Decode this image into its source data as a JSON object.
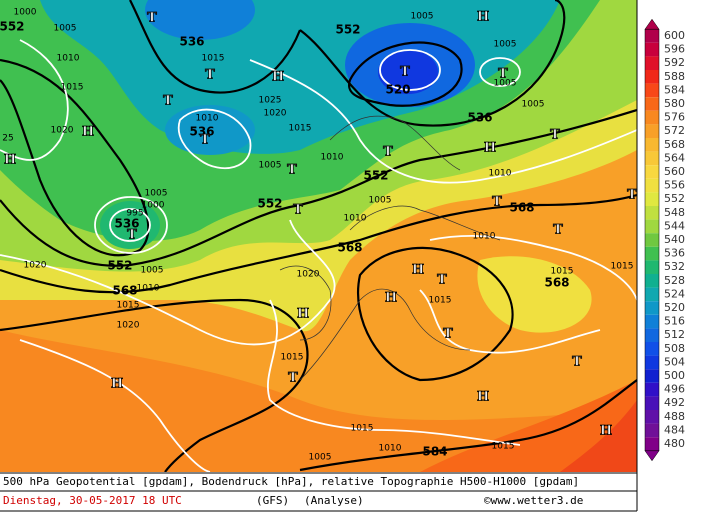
{
  "map": {
    "labels": [
      "1000",
      "1005",
      "552",
      "1010",
      "1015",
      "1020",
      "H",
      "H",
      "25",
      "T",
      "536",
      "1015",
      "T",
      "H",
      "1025",
      "T",
      "1020",
      "1010",
      "536",
      "T",
      "1015",
      "1005",
      "T",
      "1010",
      "552",
      "1005",
      "H",
      "T",
      "520",
      "T",
      "1005",
      "1005",
      "1005",
      "536",
      "H",
      "T",
      "T",
      "552",
      "1010",
      "1005",
      "552",
      "T",
      "1010",
      "T",
      "568",
      "T",
      "1005",
      "1000",
      "995",
      "536",
      "T",
      "1020",
      "552",
      "1005",
      "568",
      "1010",
      "1015",
      "1020",
      "568",
      "1010",
      "T",
      "1020",
      "T",
      "H",
      "1015",
      "568",
      "1015",
      "H",
      "1015",
      "H",
      "T",
      "1015",
      "T",
      "T",
      "H",
      "H",
      "1015",
      "1010",
      "1015",
      "584",
      "1005",
      "H"
    ],
    "colorbar": {
      "levels": [
        600,
        596,
        592,
        588,
        584,
        580,
        576,
        572,
        568,
        564,
        560,
        556,
        552,
        548,
        544,
        540,
        536,
        532,
        528,
        524,
        520,
        516,
        512,
        508,
        504,
        500,
        496,
        492,
        488,
        484,
        480
      ],
      "colors": [
        "#b0004a",
        "#c8003c",
        "#e0102a",
        "#f02818",
        "#f84818",
        "#f86818",
        "#f88820",
        "#f8a028",
        "#f8b830",
        "#f8c838",
        "#f8d840",
        "#f0e040",
        "#e0e840",
        "#c0e040",
        "#a0d840",
        "#70c840",
        "#40c050",
        "#20b870",
        "#10b090",
        "#10a8b0",
        "#1098c8",
        "#1080d8",
        "#1068e0",
        "#1050e8",
        "#1038e0",
        "#1020d0",
        "#3010c8",
        "#4810b8",
        "#6010a8",
        "#701098",
        "#800088"
      ]
    }
  },
  "footer": {
    "line1": "500 hPa Geopotential [gpdam], Bodendruck [hPa], relative Topographie H500-H1000 [gpdam]",
    "date": "Dienstag, 30-05-2017  18 UTC",
    "model": "(GFS)",
    "run": "(Analyse)",
    "credit": "©www.wetter3.de"
  }
}
